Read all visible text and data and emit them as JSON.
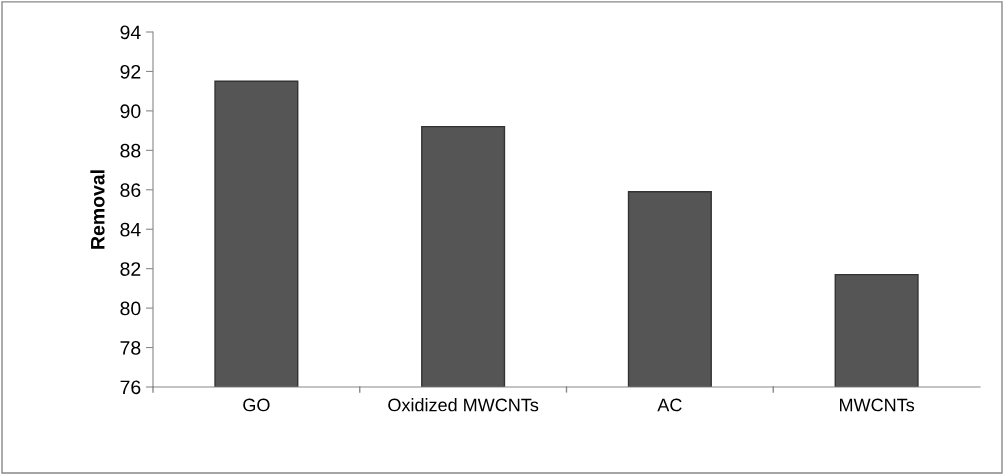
{
  "chart_data": {
    "type": "bar",
    "ylabel": "Removal",
    "categories": [
      "GO",
      "Oxidized MWCNTs",
      "AC",
      "MWCNTs"
    ],
    "values": [
      91.5,
      89.2,
      85.9,
      81.7
    ],
    "color": "#555555",
    "ylim": [
      76,
      94
    ],
    "yticks": [
      76,
      78,
      80,
      82,
      84,
      86,
      88,
      90,
      92,
      94
    ],
    "grid": false,
    "legend": false
  }
}
